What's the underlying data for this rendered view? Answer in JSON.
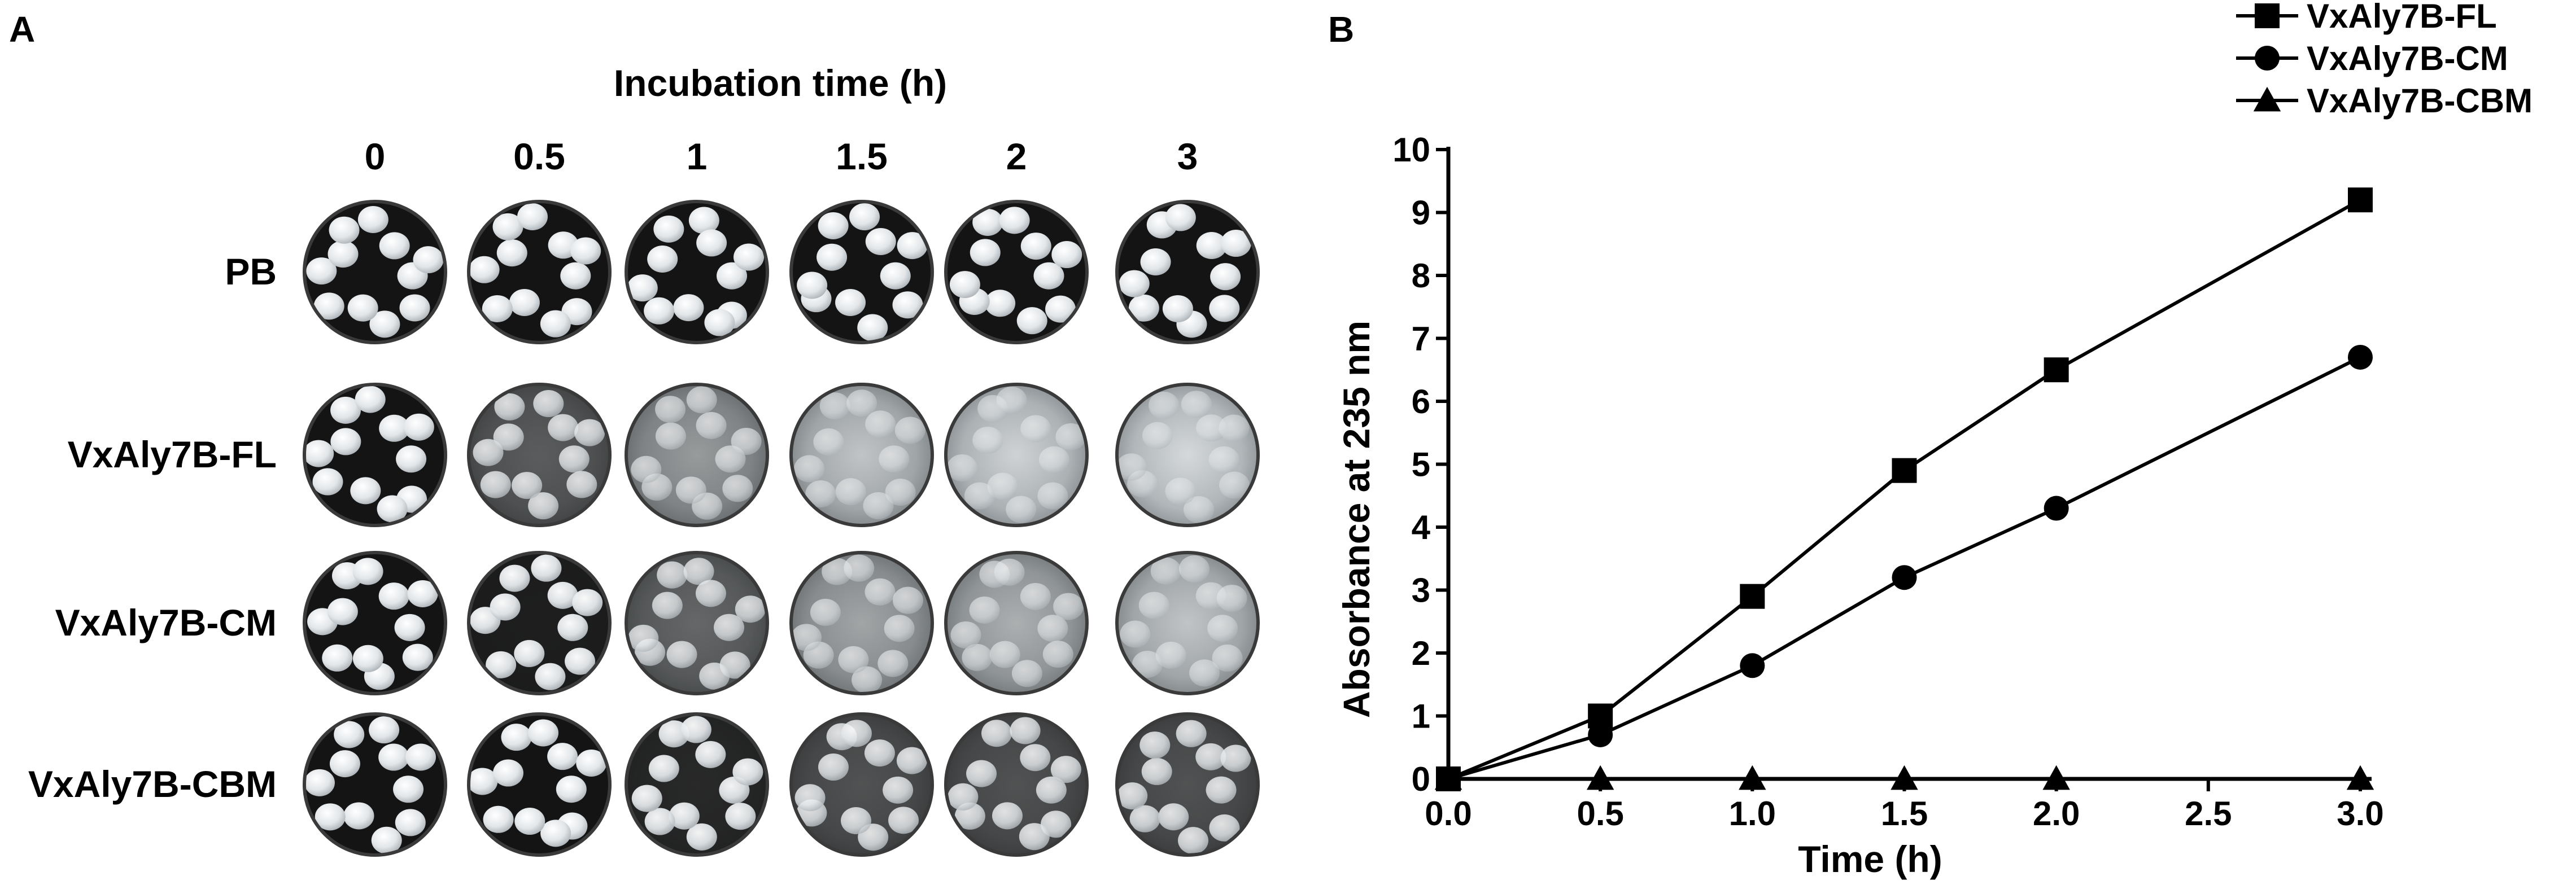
{
  "panel_a": {
    "letter": "A",
    "header": "Incubation time (h)",
    "time_columns": [
      "0",
      "0.5",
      "1",
      "1.5",
      "2",
      "3"
    ],
    "row_labels": [
      "PB",
      "VxAly7B-FL",
      "VxAly7B-CM",
      "VxAly7B-CBM"
    ],
    "degradation_level": [
      [
        0,
        0,
        0,
        0,
        0,
        0
      ],
      [
        0,
        0.35,
        0.65,
        0.85,
        0.92,
        0.97
      ],
      [
        0,
        0.05,
        0.4,
        0.7,
        0.75,
        0.85
      ],
      [
        0,
        0,
        0.1,
        0.3,
        0.3,
        0.3
      ]
    ]
  },
  "panel_b": {
    "letter": "B"
  },
  "chart_data": {
    "type": "line",
    "xlabel": "Time (h)",
    "ylabel": "Absorbance at 235 nm",
    "xlim": [
      0,
      3
    ],
    "ylim": [
      0,
      10
    ],
    "xticks": [
      "0.0",
      "0.5",
      "1.0",
      "1.5",
      "2.0",
      "2.5",
      "3.0"
    ],
    "yticks": [
      "0",
      "1",
      "2",
      "3",
      "4",
      "5",
      "6",
      "7",
      "8",
      "9",
      "10"
    ],
    "grid": false,
    "legend_position": "top-right",
    "series": [
      {
        "name": "VxAly7B-FL",
        "marker": "square",
        "x": [
          0,
          0.5,
          1.0,
          1.5,
          2.0,
          3.0
        ],
        "y": [
          0,
          1.0,
          2.9,
          4.9,
          6.5,
          9.2
        ]
      },
      {
        "name": "VxAly7B-CM",
        "marker": "circle",
        "x": [
          0,
          0.5,
          1.0,
          1.5,
          2.0,
          3.0
        ],
        "y": [
          0,
          0.7,
          1.8,
          3.2,
          4.3,
          6.7
        ]
      },
      {
        "name": "VxAly7B-CBM",
        "marker": "triangle",
        "x": [
          0,
          0.5,
          1.0,
          1.5,
          2.0,
          3.0
        ],
        "y": [
          0,
          0,
          0,
          0,
          0,
          0
        ]
      }
    ]
  }
}
